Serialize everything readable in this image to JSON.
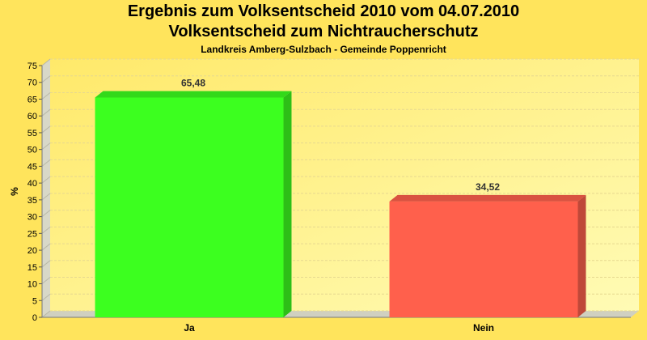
{
  "colors": {
    "background": "#FFE45C",
    "plot_background_top": "#FFE96A",
    "plot_background_bottom": "#FFFBB5",
    "ja": "#3CFF1F",
    "nein": "#FF604C"
  },
  "chart_data": {
    "type": "bar",
    "title": "Ergebnis zum Volksentscheid 2010 vom 04.07.2010",
    "subtitle": "Volksentscheid zum Nichtraucherschutz",
    "subsubtitle": "Landkreis Amberg-Sulzbach - Gemeinde Poppenricht",
    "xlabel": "",
    "ylabel": "%",
    "ylim": [
      0,
      75
    ],
    "yticks": [
      0,
      5,
      10,
      15,
      20,
      25,
      30,
      35,
      40,
      45,
      50,
      55,
      60,
      65,
      70,
      75
    ],
    "grid": true,
    "categories": [
      "Ja",
      "Nein"
    ],
    "values": [
      65.48,
      34.52
    ],
    "value_labels": [
      "65,48",
      "34,52"
    ]
  }
}
